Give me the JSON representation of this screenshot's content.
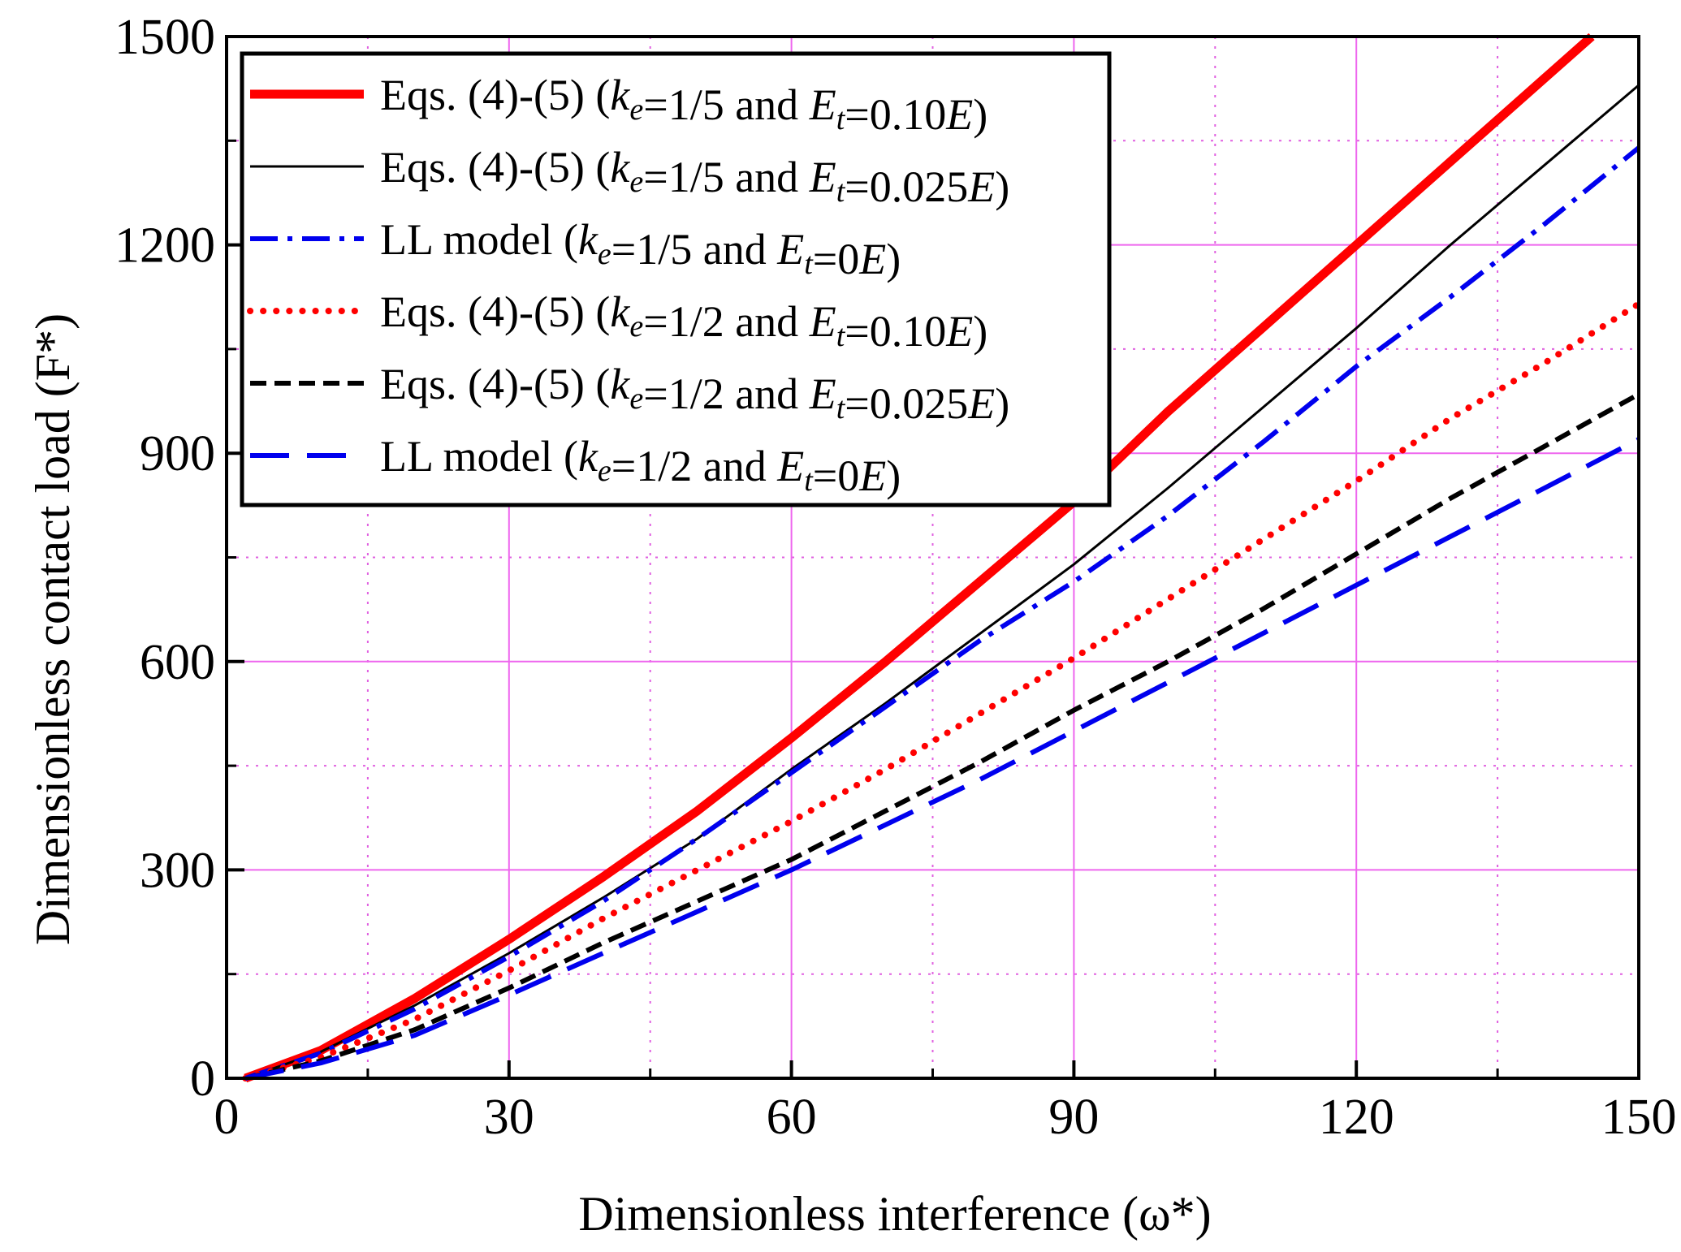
{
  "chart_data": {
    "type": "line",
    "title": "",
    "xlabel": "Dimensionless interference (ω*)",
    "ylabel": "Dimensionless contact load (F*)",
    "xlim": [
      0,
      150
    ],
    "ylim": [
      0,
      1500
    ],
    "xticks": [
      "0",
      "30",
      "60",
      "90",
      "120",
      "150"
    ],
    "yticks": [
      "0",
      "300",
      "600",
      "900",
      "1200",
      "1500"
    ],
    "grid": true,
    "legend_position": "top-left",
    "series": [
      {
        "name": "Eqs. (4)-(5) (ke=1/5 and Et=0.10E)",
        "legend_label": "Eqs. (4)-(5) (k_e=1/5 and E_t=0.10E)",
        "color": "#ff0000",
        "style": "solid-thick",
        "x": [
          2,
          10,
          20,
          30,
          40,
          50,
          60,
          70,
          80,
          90,
          100,
          110,
          120,
          130,
          140,
          145
        ],
        "y": [
          0,
          40,
          115,
          200,
          290,
          385,
          490,
          600,
          715,
          830,
          960,
          1080,
          1200,
          1320,
          1440,
          1500
        ]
      },
      {
        "name": "Eqs. (4)-(5) (ke=1/5 and Et=0.025E)",
        "legend_label": "Eqs. (4)-(5) (k_e=1/5 and E_t=0.025E)",
        "color": "#000000",
        "style": "solid-thin",
        "x": [
          2,
          10,
          20,
          30,
          40,
          50,
          60,
          70,
          80,
          90,
          100,
          110,
          120,
          130,
          140,
          150
        ],
        "y": [
          0,
          38,
          105,
          180,
          260,
          345,
          445,
          540,
          640,
          740,
          850,
          965,
          1080,
          1200,
          1315,
          1430
        ]
      },
      {
        "name": "LL model (ke=1/5 and Et=0E)",
        "legend_label": "LL model (k_e=1/5 and E_t=0E)",
        "color": "#0000ee",
        "style": "dash-dot",
        "x": [
          2,
          10,
          20,
          30,
          40,
          50,
          60,
          70,
          80,
          90,
          100,
          110,
          120,
          130,
          140,
          150
        ],
        "y": [
          0,
          36,
          100,
          175,
          255,
          345,
          440,
          535,
          630,
          715,
          810,
          915,
          1025,
          1125,
          1230,
          1340
        ]
      },
      {
        "name": "Eqs. (4)-(5) (ke=1/2 and Et=0.10E)",
        "legend_label": "Eqs. (4)-(5) (k_e=1/2 and E_t=0.10E)",
        "color": "#ff0000",
        "style": "dotted",
        "x": [
          2,
          10,
          20,
          30,
          40,
          50,
          60,
          70,
          80,
          90,
          100,
          110,
          120,
          130,
          140,
          150
        ],
        "y": [
          0,
          30,
          85,
          155,
          230,
          300,
          370,
          445,
          525,
          605,
          690,
          775,
          860,
          950,
          1030,
          1115
        ]
      },
      {
        "name": "Eqs. (4)-(5) (ke=1/2 and Et=0.025E)",
        "legend_label": "Eqs. (4)-(5) (k_e=1/2 and E_t=0.025E)",
        "color": "#000000",
        "style": "short-dash",
        "x": [
          2,
          10,
          20,
          30,
          40,
          50,
          60,
          70,
          80,
          90,
          100,
          110,
          120,
          130,
          140,
          150
        ],
        "y": [
          0,
          25,
          70,
          130,
          195,
          255,
          315,
          385,
          455,
          530,
          600,
          675,
          755,
          835,
          910,
          985
        ]
      },
      {
        "name": "LL model (ke=1/2 and Et=0E)",
        "legend_label": "LL model (k_e=1/2 and E_t=0E)",
        "color": "#0000ee",
        "style": "long-dash",
        "x": [
          2,
          10,
          20,
          30,
          40,
          50,
          60,
          70,
          80,
          90,
          100,
          110,
          120,
          130,
          140,
          150
        ],
        "y": [
          0,
          22,
          62,
          120,
          180,
          240,
          300,
          365,
          430,
          500,
          570,
          640,
          710,
          780,
          850,
          920
        ]
      }
    ]
  }
}
